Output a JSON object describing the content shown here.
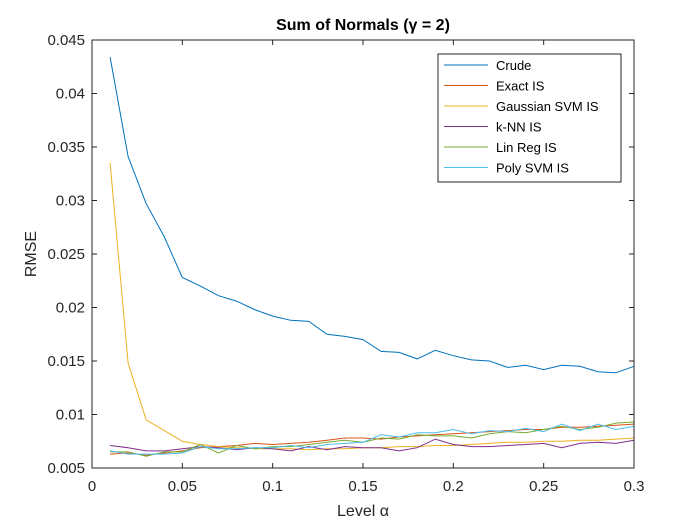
{
  "chart_data": {
    "type": "line",
    "title": "Sum of Normals (γ = 2)",
    "xlabel": "Level α",
    "ylabel": "RMSE",
    "xlim": [
      0,
      0.3
    ],
    "ylim": [
      0.005,
      0.045
    ],
    "xticks": [
      "0",
      "0.05",
      "0.1",
      "0.15",
      "0.2",
      "0.25",
      "0.3"
    ],
    "yticks": [
      "0.005",
      "0.01",
      "0.015",
      "0.02",
      "0.025",
      "0.03",
      "0.035",
      "0.04",
      "0.045"
    ],
    "legend_position": "top-right",
    "grid": false,
    "x": [
      0.01,
      0.02,
      0.03,
      0.04,
      0.05,
      0.06,
      0.07,
      0.08,
      0.09,
      0.1,
      0.11,
      0.12,
      0.13,
      0.14,
      0.15,
      0.16,
      0.17,
      0.18,
      0.19,
      0.2,
      0.21,
      0.22,
      0.23,
      0.24,
      0.25,
      0.26,
      0.27,
      0.28,
      0.29,
      0.3
    ],
    "series": [
      {
        "name": "Crude",
        "color": "#0072BD",
        "values": [
          0.0434,
          0.0341,
          0.0297,
          0.0266,
          0.0228,
          0.022,
          0.0211,
          0.0206,
          0.0198,
          0.0192,
          0.0188,
          0.0187,
          0.0175,
          0.0173,
          0.017,
          0.0159,
          0.0158,
          0.0152,
          0.016,
          0.0155,
          0.0151,
          0.015,
          0.0144,
          0.0146,
          0.0142,
          0.0146,
          0.0145,
          0.014,
          0.0139,
          0.0145
        ]
      },
      {
        "name": "Exact IS",
        "color": "#D95319",
        "values": [
          0.0063,
          0.0064,
          0.0062,
          0.0064,
          0.0066,
          0.0069,
          0.007,
          0.0071,
          0.0073,
          0.0072,
          0.0073,
          0.0074,
          0.0076,
          0.0078,
          0.0078,
          0.0077,
          0.0079,
          0.008,
          0.0081,
          0.0082,
          0.0083,
          0.0084,
          0.0085,
          0.0086,
          0.0086,
          0.0088,
          0.0088,
          0.0089,
          0.009,
          0.0091
        ]
      },
      {
        "name": "Gaussian SVM IS",
        "color": "#EDB120",
        "values": [
          0.0335,
          0.0148,
          0.0095,
          0.0085,
          0.0075,
          0.0072,
          0.007,
          0.0069,
          0.0068,
          0.0068,
          0.0068,
          0.0067,
          0.0068,
          0.0068,
          0.0069,
          0.0069,
          0.007,
          0.007,
          0.0071,
          0.0071,
          0.0072,
          0.0073,
          0.0074,
          0.0074,
          0.0075,
          0.0075,
          0.0076,
          0.0076,
          0.0077,
          0.0078
        ]
      },
      {
        "name": "k-NN IS",
        "color": "#7E2F8E",
        "values": [
          0.0071,
          0.0069,
          0.0066,
          0.0066,
          0.0068,
          0.007,
          0.0069,
          0.0067,
          0.0069,
          0.0068,
          0.0066,
          0.007,
          0.0067,
          0.007,
          0.0069,
          0.0069,
          0.0066,
          0.0069,
          0.0077,
          0.0072,
          0.007,
          0.007,
          0.0071,
          0.0072,
          0.0073,
          0.0069,
          0.0073,
          0.0074,
          0.0073,
          0.0076
        ]
      },
      {
        "name": "Lin Reg IS",
        "color": "#77AC30",
        "values": [
          0.0065,
          0.0065,
          0.0061,
          0.0065,
          0.0065,
          0.0072,
          0.0064,
          0.0071,
          0.0068,
          0.007,
          0.007,
          0.0072,
          0.0074,
          0.0076,
          0.0074,
          0.0078,
          0.0077,
          0.0081,
          0.008,
          0.008,
          0.0078,
          0.0082,
          0.0084,
          0.0083,
          0.0086,
          0.0089,
          0.0086,
          0.0088,
          0.0092,
          0.0093
        ]
      },
      {
        "name": "Poly SVM IS",
        "color": "#4DBEEE",
        "values": [
          0.0066,
          0.0063,
          0.0063,
          0.0063,
          0.0064,
          0.007,
          0.0068,
          0.0068,
          0.0069,
          0.0069,
          0.0071,
          0.0069,
          0.0072,
          0.0073,
          0.0074,
          0.0081,
          0.0079,
          0.0083,
          0.0083,
          0.0086,
          0.0082,
          0.0085,
          0.0084,
          0.0087,
          0.0084,
          0.0091,
          0.0085,
          0.0091,
          0.0086,
          0.0089
        ]
      }
    ]
  }
}
